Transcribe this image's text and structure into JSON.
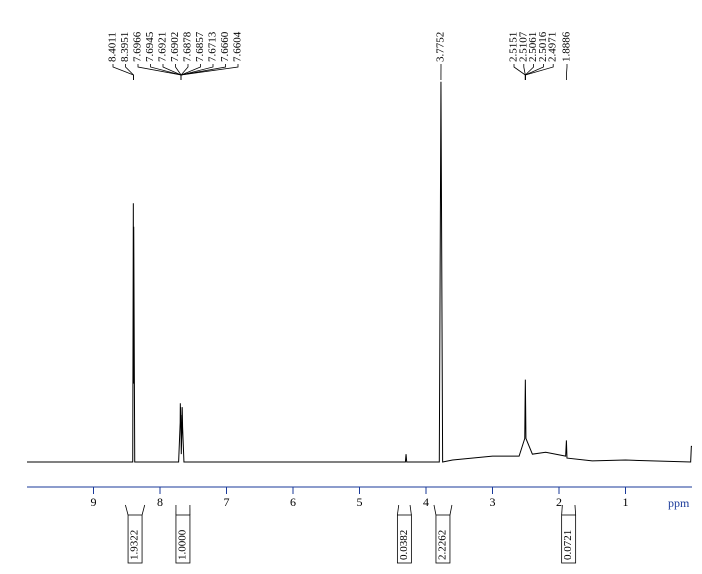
{
  "chart_data": {
    "type": "line",
    "x_label": "ppm",
    "xlim": [
      10,
      0
    ],
    "xticks": [
      9,
      8,
      7,
      6,
      5,
      4,
      3,
      2,
      1
    ],
    "ylim": [
      0,
      100
    ],
    "series": [
      {
        "color": "#000000",
        "x": [
          10,
          8.45,
          8.41,
          8.4011,
          8.398,
          8.3951,
          8.38,
          7.72,
          7.6966,
          7.6945,
          7.6921,
          7.6902,
          7.6878,
          7.6857,
          7.68,
          7.6713,
          7.666,
          7.6604,
          7.64,
          4.31,
          4.3,
          4.29,
          3.8,
          3.7752,
          3.75,
          3.6,
          3.0,
          2.6,
          2.5151,
          2.5107,
          2.5061,
          2.5016,
          2.4971,
          2.4,
          2.2,
          1.9,
          1.8886,
          1.88,
          1.5,
          1.0,
          0.02,
          0.01,
          0
        ],
        "values": [
          0,
          0,
          0,
          66,
          20,
          60,
          0,
          0,
          10,
          15,
          12,
          14,
          11,
          12,
          2,
          8,
          14,
          9,
          0,
          0,
          2,
          0,
          0,
          97,
          0,
          0.5,
          1.5,
          1.5,
          6,
          14,
          21,
          14,
          6,
          2,
          2.5,
          1.5,
          5.5,
          1,
          0.3,
          0.5,
          0,
          4,
          4
        ]
      }
    ],
    "peak_labels": [
      8.4011,
      8.3951,
      7.6966,
      7.6945,
      7.6921,
      7.6902,
      7.6878,
      7.6857,
      7.6713,
      {
        "value": 7.666,
        "label": "7.6660"
      },
      7.6604,
      3.7752,
      2.5151,
      2.5107,
      2.5061,
      2.5016,
      2.4971,
      1.8886
    ],
    "integrals": [
      {
        "range": [
          8.52,
          8.23
        ],
        "value": 1.9322
      },
      {
        "range": [
          7.76,
          7.55
        ],
        "value": {
          "value": 1,
          "label": "1.0000"
        }
      },
      {
        "range": [
          4.41,
          4.24
        ],
        "value": 0.0382
      },
      {
        "range": [
          3.88,
          3.61
        ],
        "value": 2.2262
      },
      {
        "range": [
          1.95,
          1.76
        ],
        "value": 0.0721
      }
    ]
  }
}
